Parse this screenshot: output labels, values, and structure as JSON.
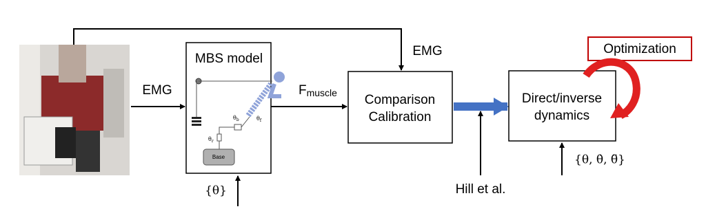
{
  "photo_output_label": "EMG",
  "feedback_label": "EMG",
  "mbs_model": {
    "title": "MBS model",
    "joint_labels": [
      {
        "symbol": "θ",
        "sub": "b"
      },
      {
        "symbol": "θ",
        "sub": "f"
      },
      {
        "symbol": "θ",
        "sub": "r"
      }
    ],
    "base_label": "Base"
  },
  "mbs_input_label": "{θ}",
  "force_label": {
    "symbol": "F",
    "sub": "muscle"
  },
  "comparison_box": {
    "lines": [
      "Comparison",
      "Calibration"
    ]
  },
  "hill_label": "Hill et al.",
  "dynamics_box": {
    "lines": [
      "Direct/inverse",
      "dynamics"
    ]
  },
  "dynamics_input_label": "{θ, θ̇, θ̈}",
  "optimization_label": "Optimization"
}
